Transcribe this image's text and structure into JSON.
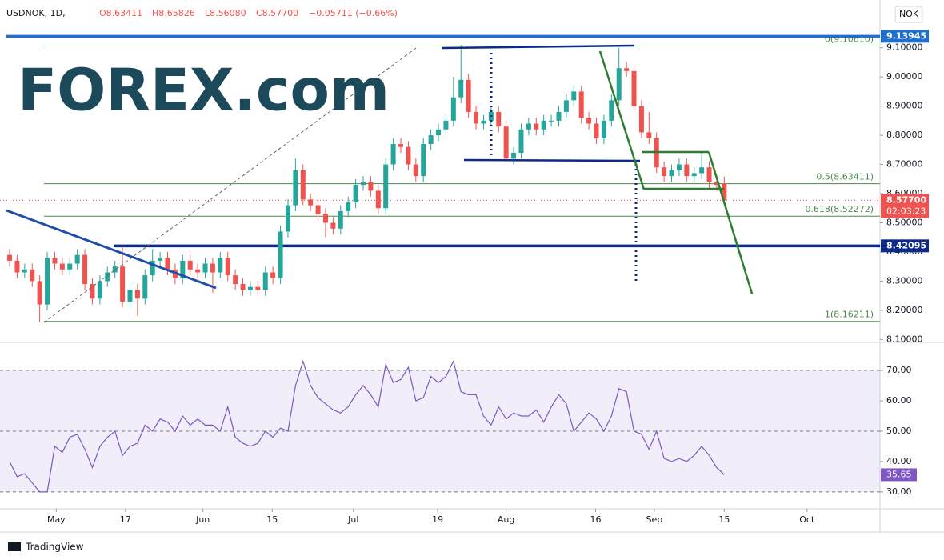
{
  "chart_data": [
    {
      "type": "candlestick",
      "symbol": "USDNOK, 1D,",
      "ohlc": [
        "O8.63411",
        "H8.65826",
        "L8.56080",
        "C8.57700",
        "−0.05711 (−0.66%)"
      ],
      "logo": "FOREX.com",
      "currency": "NOK",
      "up_color": "#26a69a",
      "down_color": "#ef5350",
      "open": [
        8.39,
        8.37,
        8.33,
        8.34,
        8.3,
        8.22,
        8.38,
        8.36,
        8.34,
        8.36,
        8.39,
        8.29,
        8.24,
        8.3,
        8.33,
        8.35,
        8.23,
        8.27,
        8.24,
        8.32,
        8.37,
        8.38,
        8.34,
        8.31,
        8.37,
        8.34,
        8.33,
        8.36,
        8.33,
        8.38,
        8.32,
        8.29,
        8.27,
        8.28,
        8.27,
        8.33,
        8.31,
        8.47,
        8.56,
        8.68,
        8.58,
        8.56,
        8.53,
        8.5,
        8.48,
        8.54,
        8.57,
        8.63,
        8.64,
        8.61,
        8.55,
        8.7,
        8.77,
        8.76,
        8.7,
        8.66,
        8.77,
        8.8,
        8.82,
        8.85,
        8.93,
        8.99,
        8.88,
        8.84,
        8.85,
        8.88,
        8.83,
        8.72,
        8.74,
        8.82,
        8.84,
        8.82,
        8.85,
        8.85,
        8.88,
        8.92,
        8.95,
        8.86,
        8.84,
        8.79,
        8.85,
        8.92,
        9.03,
        9.02,
        8.9,
        8.81,
        8.79,
        8.69,
        8.66,
        8.68,
        8.7,
        8.66,
        8.67,
        8.69,
        8.64,
        8.63411
      ],
      "high": [
        8.41,
        8.39,
        8.36,
        8.36,
        8.32,
        8.4,
        8.4,
        8.38,
        8.38,
        8.41,
        8.41,
        8.31,
        8.32,
        8.35,
        8.37,
        8.42,
        8.29,
        8.29,
        8.34,
        8.41,
        8.4,
        8.4,
        8.36,
        8.39,
        8.39,
        8.36,
        8.38,
        8.38,
        8.4,
        8.4,
        8.34,
        8.31,
        8.3,
        8.3,
        8.35,
        8.35,
        8.49,
        8.58,
        8.72,
        8.7,
        8.6,
        8.58,
        8.55,
        8.52,
        8.56,
        8.59,
        8.65,
        8.66,
        8.66,
        8.63,
        8.72,
        8.79,
        8.79,
        8.78,
        8.72,
        8.79,
        8.82,
        8.84,
        8.87,
        9.0,
        9.11,
        9.01,
        8.9,
        8.87,
        8.9,
        8.9,
        8.85,
        8.76,
        8.84,
        8.86,
        8.86,
        8.87,
        8.87,
        8.9,
        8.94,
        8.97,
        8.97,
        8.88,
        8.86,
        8.87,
        8.94,
        9.1,
        9.05,
        9.04,
        8.92,
        8.88,
        8.81,
        8.71,
        8.7,
        8.72,
        8.72,
        8.69,
        8.74,
        8.71,
        8.66,
        8.65826
      ],
      "low": [
        8.35,
        8.31,
        8.31,
        8.28,
        8.16,
        8.2,
        8.34,
        8.32,
        8.32,
        8.34,
        8.27,
        8.22,
        8.22,
        8.28,
        8.31,
        8.21,
        8.21,
        8.18,
        8.22,
        8.3,
        8.35,
        8.32,
        8.29,
        8.29,
        8.32,
        8.31,
        8.31,
        8.26,
        8.31,
        8.3,
        8.27,
        8.25,
        8.25,
        8.25,
        8.25,
        8.29,
        8.29,
        8.45,
        8.54,
        8.56,
        8.54,
        8.51,
        8.45,
        8.46,
        8.46,
        8.52,
        8.55,
        8.61,
        8.59,
        8.53,
        8.53,
        8.68,
        8.74,
        8.68,
        8.64,
        8.64,
        8.75,
        8.78,
        8.8,
        8.83,
        8.91,
        8.86,
        8.82,
        8.82,
        8.83,
        8.81,
        8.71,
        8.7,
        8.72,
        8.8,
        8.8,
        8.8,
        8.83,
        8.83,
        8.86,
        8.9,
        8.84,
        8.82,
        8.77,
        8.77,
        8.83,
        8.9,
        9.0,
        8.88,
        8.79,
        8.77,
        8.67,
        8.64,
        8.64,
        8.66,
        8.64,
        8.64,
        8.65,
        8.62,
        8.61,
        8.5608
      ],
      "close": [
        8.37,
        8.33,
        8.34,
        8.3,
        8.22,
        8.38,
        8.36,
        8.34,
        8.36,
        8.39,
        8.29,
        8.24,
        8.3,
        8.33,
        8.35,
        8.23,
        8.27,
        8.24,
        8.32,
        8.37,
        8.38,
        8.34,
        8.31,
        8.37,
        8.34,
        8.33,
        8.36,
        8.33,
        8.38,
        8.32,
        8.29,
        8.27,
        8.28,
        8.27,
        8.33,
        8.31,
        8.47,
        8.56,
        8.68,
        8.58,
        8.56,
        8.53,
        8.5,
        8.48,
        8.54,
        8.57,
        8.63,
        8.64,
        8.61,
        8.55,
        8.7,
        8.77,
        8.76,
        8.7,
        8.66,
        8.77,
        8.8,
        8.82,
        8.85,
        8.93,
        8.99,
        8.88,
        8.84,
        8.85,
        8.88,
        8.83,
        8.72,
        8.74,
        8.82,
        8.84,
        8.82,
        8.85,
        8.85,
        8.88,
        8.92,
        8.95,
        8.86,
        8.84,
        8.79,
        8.85,
        8.92,
        9.03,
        9.02,
        8.9,
        8.81,
        8.79,
        8.69,
        8.66,
        8.68,
        8.7,
        8.66,
        8.67,
        8.69,
        8.64,
        8.63,
        8.577
      ],
      "xlim": [
        -1.28,
        115.7
      ],
      "ylim": [
        8.09,
        9.25
      ],
      "yticks": [
        {
          "value": 8.1,
          "label": "8.10000"
        },
        {
          "value": 8.2,
          "label": "8.20000"
        },
        {
          "value": 8.3,
          "label": "8.30000"
        },
        {
          "value": 8.4,
          "label": "8.40000"
        },
        {
          "value": 8.5,
          "label": "8.50000"
        },
        {
          "value": 8.6,
          "label": "8.60000"
        },
        {
          "value": 8.7,
          "label": "8.70000"
        },
        {
          "value": 8.8,
          "label": "8.80000"
        },
        {
          "value": 8.9,
          "label": "8.90000"
        },
        {
          "value": 9.0,
          "label": "9.00000"
        },
        {
          "value": 9.1,
          "label": "9.10000"
        }
      ],
      "levels": [
        {
          "value": 9.1061,
          "label": "0(9.10610)"
        },
        {
          "value": 8.63411,
          "label": "0.5(8.63411)"
        },
        {
          "value": 8.52272,
          "label": "0.618(8.52272)"
        },
        {
          "value": 8.16211,
          "label": "1(8.16211)"
        }
      ],
      "level_color": "#4c8a4c",
      "price_tags": [
        {
          "value": 9.13945,
          "label": "9.13945",
          "color": "#1e6fd0"
        },
        {
          "value": 8.577,
          "label": "8.57700",
          "color": "#ef5350"
        },
        {
          "value": 8.42095,
          "label": "8.42095",
          "color": "#0d2a8a"
        }
      ],
      "countdown": "02:03:23"
    },
    {
      "type": "line",
      "series": [
        {
          "color": "#7e57c2",
          "values": [
            40,
            35,
            36,
            33,
            30,
            30,
            45,
            43,
            48,
            49,
            44,
            38,
            45,
            48,
            50,
            42,
            45,
            46,
            52,
            50,
            54,
            53,
            50,
            55,
            52,
            54,
            52,
            52,
            50,
            58,
            48,
            46,
            45,
            46,
            50,
            48,
            51,
            50,
            65,
            73,
            65,
            61,
            59,
            57,
            56,
            58,
            62,
            65,
            62,
            58,
            72,
            66,
            67,
            71,
            60,
            61,
            68,
            66,
            68,
            73,
            63,
            62,
            62,
            55,
            52,
            58,
            54,
            56,
            55,
            55,
            57,
            53,
            58,
            62,
            59,
            50,
            53,
            56,
            54,
            50,
            55,
            64,
            63,
            50,
            49,
            44,
            50,
            41,
            40,
            41,
            40,
            42,
            45,
            42,
            38,
            35.65
          ]
        }
      ],
      "xlim": [
        -1.28,
        115.7
      ],
      "ylim": [
        24.7,
        78.7
      ],
      "yticks": [
        {
          "value": 30,
          "label": "30.00"
        },
        {
          "value": 40,
          "label": "40.00"
        },
        {
          "value": 50,
          "label": "50.00"
        },
        {
          "value": 60,
          "label": "60.00"
        },
        {
          "value": 70,
          "label": "70.00"
        }
      ],
      "band": [
        30,
        70
      ],
      "dashed": [
        30,
        50,
        70
      ],
      "xticks": [
        {
          "value": 6.2,
          "label": "May"
        },
        {
          "value": 15.4,
          "label": "17"
        },
        {
          "value": 25.7,
          "label": "Jun"
        },
        {
          "value": 34.9,
          "label": "15"
        },
        {
          "value": 45.7,
          "label": "Jul"
        },
        {
          "value": 56.9,
          "label": "19"
        },
        {
          "value": 66,
          "label": "Aug"
        },
        {
          "value": 77.9,
          "label": "16"
        },
        {
          "value": 85.7,
          "label": "Sep"
        },
        {
          "value": 95,
          "label": "15"
        },
        {
          "value": 106,
          "label": "Oct"
        }
      ]
    }
  ],
  "footer": "TradingView"
}
